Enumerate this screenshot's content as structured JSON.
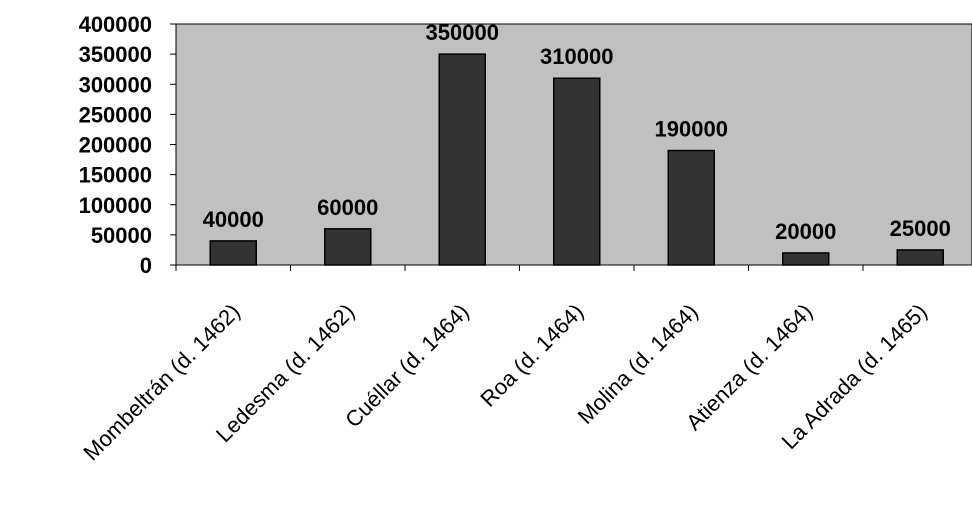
{
  "chart_data": {
    "type": "bar",
    "title": "",
    "xlabel": "",
    "ylabel": "",
    "categories": [
      "Mombeltrán (d. 1462)",
      "Ledesma (d. 1462)",
      "Cuéllar (d. 1464)",
      "Roa (d. 1464)",
      "Molina (d. 1464)",
      "Atienza (d. 1464)",
      "La Adrada (d. 1465)"
    ],
    "values": [
      40000,
      60000,
      350000,
      310000,
      190000,
      20000,
      25000
    ],
    "data_labels": [
      "40000",
      "60000",
      "350000",
      "310000",
      "190000",
      "20000",
      "25000"
    ],
    "ylim": [
      0,
      400000
    ],
    "yticks": [
      0,
      50000,
      100000,
      150000,
      200000,
      250000,
      300000,
      350000,
      400000
    ],
    "ytick_labels": [
      "0",
      "50000",
      "100000",
      "150000",
      "200000",
      "250000",
      "300000",
      "350000",
      "400000"
    ],
    "grid": false,
    "legend": "none",
    "colors": {
      "plot_background": "#c0c0c0",
      "bar_fill": "#333333",
      "bar_stroke": "#000000",
      "axis": "#000000"
    }
  }
}
